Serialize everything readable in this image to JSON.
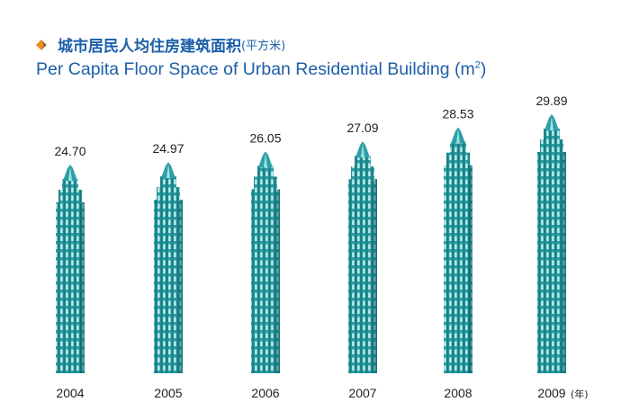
{
  "title_cn": "城市居民人均住房建筑面积",
  "title_cn_unit": "(平方米)",
  "title_en": "Per Capita Floor Space of Urban Residential Building (m",
  "title_en_sup": "2",
  "title_en_close": ")",
  "colors": {
    "title": "#1c5fa8",
    "bullet_orange": "#f08c1e",
    "bullet_blue": "#1c5fa8",
    "building_dark": "#1a8a8f",
    "building_light": "#8fdcdc",
    "building_mid": "#35a7ad"
  },
  "chart_data": {
    "type": "bar",
    "categories": [
      "2004",
      "2005",
      "2006",
      "2007",
      "2008",
      "2009"
    ],
    "values": [
      24.7,
      24.97,
      26.05,
      27.09,
      28.53,
      29.89
    ],
    "value_labels": [
      "24.70",
      "24.97",
      "26.05",
      "27.09",
      "28.53",
      "29.89"
    ],
    "x_unit_label": "(年)",
    "title": "城市居民人均住房建筑面积(平方米) / Per Capita Floor Space of Urban Residential Building (m2)",
    "bar_style": "skyscraper"
  }
}
